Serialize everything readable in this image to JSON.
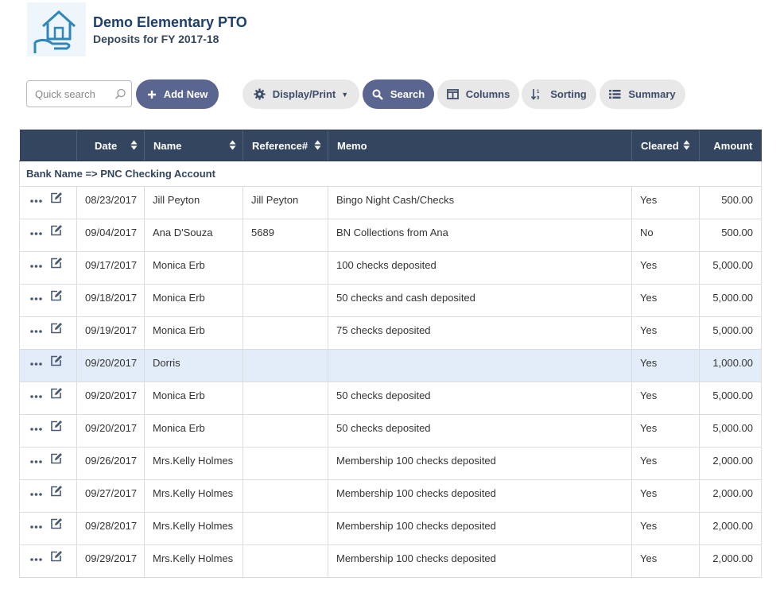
{
  "header": {
    "title": "Demo Elementary PTO",
    "subtitle": "Deposits for FY 2017-18"
  },
  "toolbar": {
    "search_placeholder": "Quick search",
    "add_new": "Add New",
    "display_print": "Display/Print",
    "search": "Search",
    "columns": "Columns",
    "sorting": "Sorting",
    "summary": "Summary"
  },
  "table": {
    "columns": {
      "date": "Date",
      "name": "Name",
      "reference": "Reference#",
      "memo": "Memo",
      "cleared": "Cleared",
      "amount": "Amount"
    },
    "group_label": "Bank Name => PNC Checking Account",
    "rows": [
      {
        "date": "08/23/2017",
        "name": "Jill Peyton",
        "reference": "Jill Peyton",
        "memo": "Bingo Night Cash/Checks",
        "cleared": "Yes",
        "amount": "500.00"
      },
      {
        "date": "09/04/2017",
        "name": "Ana D'Souza",
        "reference": "5689",
        "memo": "BN Collections from Ana",
        "cleared": "No",
        "amount": "500.00"
      },
      {
        "date": "09/17/2017",
        "name": "Monica Erb",
        "reference": "",
        "memo": "100 checks deposited",
        "cleared": "Yes",
        "amount": "5,000.00"
      },
      {
        "date": "09/18/2017",
        "name": "Monica Erb",
        "reference": "",
        "memo": "50 checks and cash deposited",
        "cleared": "Yes",
        "amount": "5,000.00"
      },
      {
        "date": "09/19/2017",
        "name": "Monica Erb",
        "reference": "",
        "memo": "75 checks deposited",
        "cleared": "Yes",
        "amount": "5,000.00"
      },
      {
        "date": "09/20/2017",
        "name": "Dorris",
        "reference": "",
        "memo": "",
        "cleared": "Yes",
        "amount": "1,000.00"
      },
      {
        "date": "09/20/2017",
        "name": "Monica Erb",
        "reference": "",
        "memo": "50 checks deposited",
        "cleared": "Yes",
        "amount": "5,000.00"
      },
      {
        "date": "09/20/2017",
        "name": "Monica Erb",
        "reference": "",
        "memo": "50 checks deposited",
        "cleared": "Yes",
        "amount": "5,000.00"
      },
      {
        "date": "09/26/2017",
        "name": "Mrs.Kelly Holmes",
        "reference": "",
        "memo": "Membership 100 checks deposited",
        "cleared": "Yes",
        "amount": "2,000.00"
      },
      {
        "date": "09/27/2017",
        "name": "Mrs.Kelly Holmes",
        "reference": "",
        "memo": "Membership 100 checks deposited",
        "cleared": "Yes",
        "amount": "2,000.00"
      },
      {
        "date": "09/28/2017",
        "name": "Mrs.Kelly Holmes",
        "reference": "",
        "memo": "Membership 100 checks deposited",
        "cleared": "Yes",
        "amount": "2,000.00"
      },
      {
        "date": "09/29/2017",
        "name": "Mrs.Kelly Holmes",
        "reference": "",
        "memo": "Membership 100 checks deposited",
        "cleared": "Yes",
        "amount": "2,000.00"
      }
    ]
  },
  "colors": {
    "header_bg": "#34465f",
    "accent_button": "#5a6590",
    "highlight_row": "#e3edfa"
  }
}
